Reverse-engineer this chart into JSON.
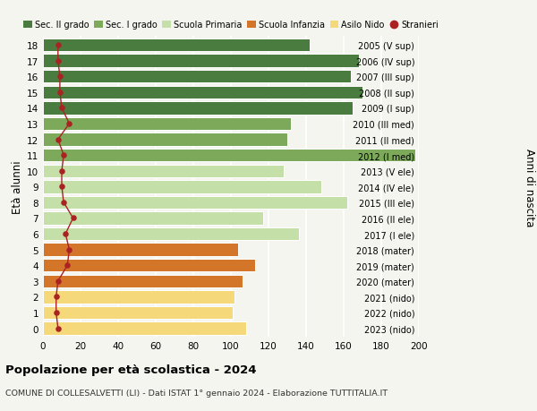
{
  "ages": [
    18,
    17,
    16,
    15,
    14,
    13,
    12,
    11,
    10,
    9,
    8,
    7,
    6,
    5,
    4,
    3,
    2,
    1,
    0
  ],
  "bar_values": [
    142,
    168,
    164,
    170,
    165,
    132,
    130,
    198,
    128,
    148,
    162,
    117,
    136,
    104,
    113,
    106,
    102,
    101,
    108
  ],
  "stranieri": [
    8,
    8,
    9,
    9,
    10,
    14,
    8,
    11,
    10,
    10,
    11,
    16,
    12,
    14,
    13,
    8,
    7,
    7,
    8
  ],
  "right_labels": [
    "2005 (V sup)",
    "2006 (IV sup)",
    "2007 (III sup)",
    "2008 (II sup)",
    "2009 (I sup)",
    "2010 (III med)",
    "2011 (II med)",
    "2012 (I med)",
    "2013 (V ele)",
    "2014 (IV ele)",
    "2015 (III ele)",
    "2016 (II ele)",
    "2017 (I ele)",
    "2018 (mater)",
    "2019 (mater)",
    "2020 (mater)",
    "2021 (nido)",
    "2022 (nido)",
    "2023 (nido)"
  ],
  "bar_colors_by_age": {
    "18": "#4a7c40",
    "17": "#4a7c40",
    "16": "#4a7c40",
    "15": "#4a7c40",
    "14": "#4a7c40",
    "13": "#7daa5a",
    "12": "#7daa5a",
    "11": "#7daa5a",
    "10": "#c5dfa8",
    "9": "#c5dfa8",
    "8": "#c5dfa8",
    "7": "#c5dfa8",
    "6": "#c5dfa8",
    "5": "#d4762a",
    "4": "#d4762a",
    "3": "#d4762a",
    "2": "#f5d87a",
    "1": "#f5d87a",
    "0": "#f5d87a"
  },
  "legend": [
    {
      "label": "Sec. II grado",
      "color": "#4a7c40"
    },
    {
      "label": "Sec. I grado",
      "color": "#7daa5a"
    },
    {
      "label": "Scuola Primaria",
      "color": "#c5dfa8"
    },
    {
      "label": "Scuola Infanzia",
      "color": "#d4762a"
    },
    {
      "label": "Asilo Nido",
      "color": "#f5d87a"
    },
    {
      "label": "Stranieri",
      "color": "#aa2222"
    }
  ],
  "ylabel": "Età alunni",
  "ylabel_right": "Anni di nascita",
  "title": "Popolazione per età scolastica - 2024",
  "subtitle": "COMUNE DI COLLESALVETTI (LI) - Dati ISTAT 1° gennaio 2024 - Elaborazione TUTTITALIA.IT",
  "xlim": [
    0,
    200
  ],
  "xticks": [
    0,
    20,
    40,
    60,
    80,
    100,
    120,
    140,
    160,
    180,
    200
  ],
  "bg_color": "#f5f5f0",
  "stranieri_color": "#aa2222"
}
